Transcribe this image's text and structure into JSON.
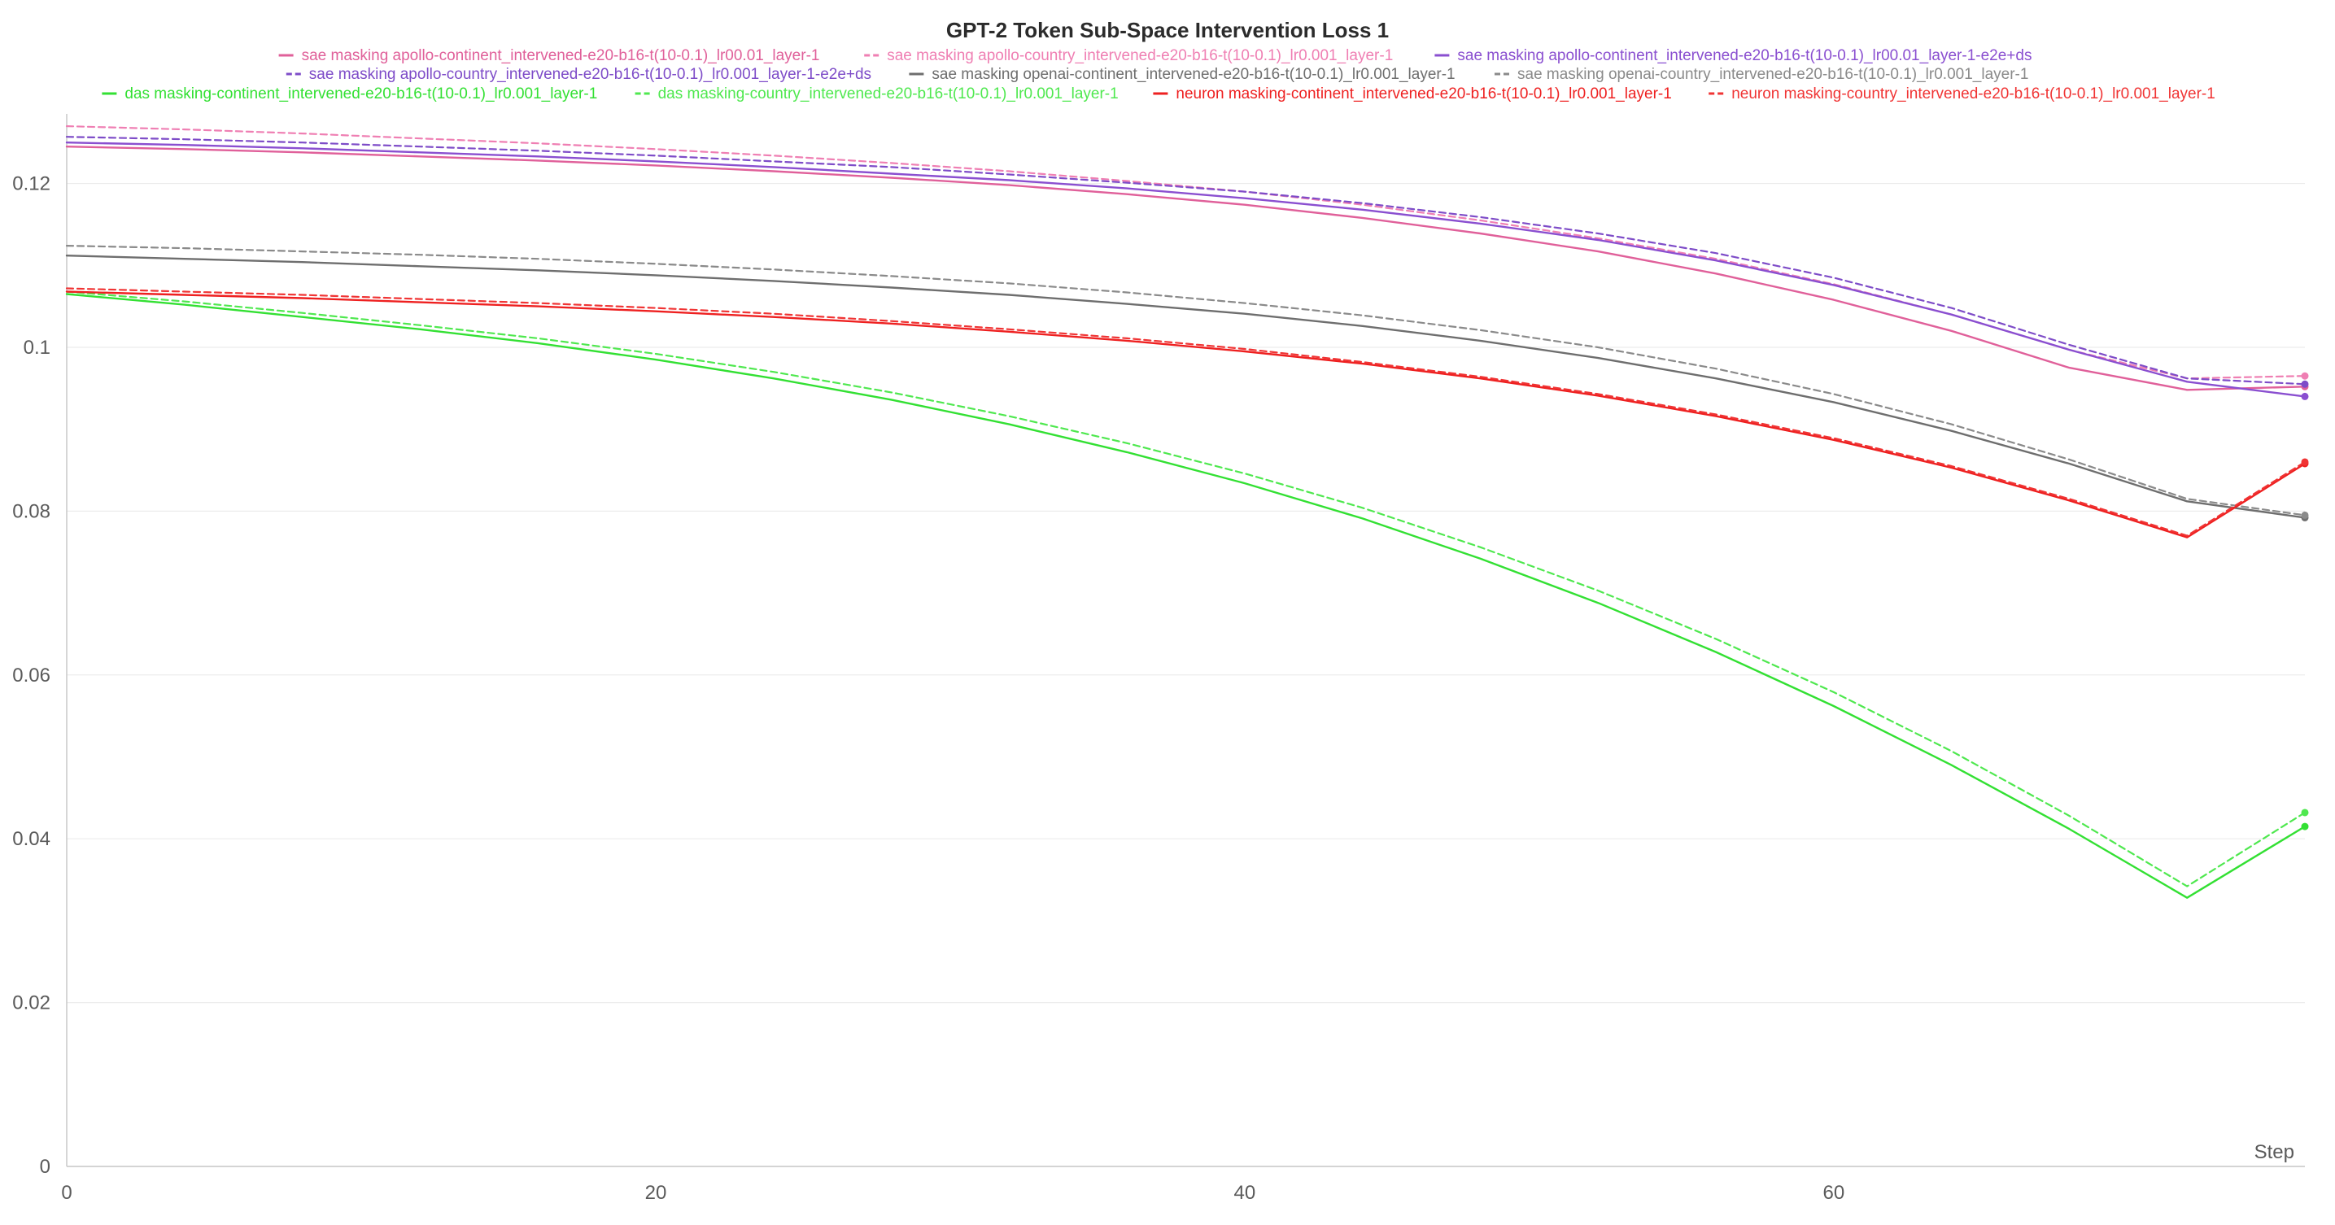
{
  "chart_data": {
    "type": "line",
    "title": "GPT-2 Token Sub-Space Intervention Loss 1",
    "xlabel": "Step",
    "ylabel": "",
    "xlim": [
      0,
      76
    ],
    "ylim": [
      0,
      0.128
    ],
    "xticks": [
      0,
      20,
      40,
      60
    ],
    "xtick_labels": [
      "0",
      "20",
      "40",
      "60"
    ],
    "yticks": [
      0,
      0.02,
      0.04,
      0.06,
      0.08,
      0.1,
      0.12
    ],
    "ytick_labels": [
      "0",
      "0.02",
      "0.04",
      "0.06",
      "0.08",
      "0.1",
      "0.12"
    ],
    "grid": true,
    "legend_position": "top",
    "x": [
      0,
      4,
      8,
      12,
      16,
      20,
      24,
      28,
      32,
      36,
      40,
      44,
      48,
      52,
      56,
      60,
      64,
      68,
      72,
      76
    ],
    "series": [
      {
        "name": "sae masking apollo-continent_intervened-e20-b16-t(10-0.1)_lr00.01_layer-1",
        "color": "#e0609a",
        "dash": "solid",
        "values": [
          0.1245,
          0.1242,
          0.1238,
          0.1233,
          0.1228,
          0.1222,
          0.1215,
          0.1207,
          0.1198,
          0.1187,
          0.1174,
          0.1158,
          0.1139,
          0.1117,
          0.109,
          0.1058,
          0.102,
          0.0975,
          0.0948,
          0.0952
        ]
      },
      {
        "name": "sae masking apollo-country_intervened-e20-b16-t(10-0.1)_lr0.001_layer-1",
        "color": "#ef7fb3",
        "dash": "dashed",
        "values": [
          0.127,
          0.1266,
          0.1261,
          0.1255,
          0.1249,
          0.1242,
          0.1234,
          0.1225,
          0.1215,
          0.1203,
          0.119,
          0.1174,
          0.1155,
          0.1133,
          0.1108,
          0.1077,
          0.104,
          0.0997,
          0.0962,
          0.0965
        ]
      },
      {
        "name": "sae masking apollo-continent_intervened-e20-b16-t(10-0.1)_lr00.01_layer-1-e2e+ds",
        "color": "#8a4fd0",
        "dash": "solid",
        "values": [
          0.125,
          0.1247,
          0.1243,
          0.1238,
          0.1233,
          0.1227,
          0.122,
          0.1212,
          0.1204,
          0.1194,
          0.1182,
          0.1168,
          0.1151,
          0.1131,
          0.1106,
          0.1076,
          0.104,
          0.0997,
          0.0958,
          0.094
        ]
      },
      {
        "name": "sae masking apollo-country_intervened-e20-b16-t(10-0.1)_lr0.001_layer-1-e2e+ds",
        "color": "#7e4cc8",
        "dash": "dashed",
        "values": [
          0.1257,
          0.1254,
          0.125,
          0.1245,
          0.124,
          0.1234,
          0.1227,
          0.122,
          0.1211,
          0.1201,
          0.119,
          0.1176,
          0.1159,
          0.1139,
          0.1115,
          0.1085,
          0.1048,
          0.1003,
          0.0962,
          0.0955
        ]
      },
      {
        "name": "sae masking openai-continent_intervened-e20-b16-t(10-0.1)_lr0.001_layer-1",
        "color": "#6e6e6e",
        "dash": "solid",
        "values": [
          0.1112,
          0.1108,
          0.1104,
          0.1099,
          0.1094,
          0.1088,
          0.1081,
          0.1073,
          0.1064,
          0.1053,
          0.1041,
          0.1026,
          0.1008,
          0.0987,
          0.0962,
          0.0933,
          0.0898,
          0.0858,
          0.0812,
          0.0792
        ]
      },
      {
        "name": "sae masking openai-country_intervened-e20-b16-t(10-0.1)_lr0.001_layer-1",
        "color": "#8a8a8a",
        "dash": "dashed",
        "values": [
          0.1124,
          0.1121,
          0.1117,
          0.1113,
          0.1108,
          0.1102,
          0.1095,
          0.1087,
          0.1078,
          0.1067,
          0.1054,
          0.1039,
          0.1021,
          0.1,
          0.0974,
          0.0943,
          0.0906,
          0.0863,
          0.0815,
          0.0795
        ]
      },
      {
        "name": "das masking-continent_intervened-e20-b16-t(10-0.1)_lr0.001_layer-1",
        "color": "#33e033",
        "dash": "solid",
        "values": [
          0.1065,
          0.1052,
          0.1037,
          0.1022,
          0.1005,
          0.0985,
          0.0962,
          0.0936,
          0.0906,
          0.0872,
          0.0834,
          0.0791,
          0.0742,
          0.0688,
          0.0628,
          0.0562,
          0.049,
          0.0412,
          0.0328,
          0.0415
        ]
      },
      {
        "name": "das masking-country_intervened-e20-b16-t(10-0.1)_lr0.001_layer-1",
        "color": "#4fe84f",
        "dash": "dashed",
        "values": [
          0.1068,
          0.1056,
          0.1042,
          0.1027,
          0.1011,
          0.0992,
          0.097,
          0.0945,
          0.0916,
          0.0883,
          0.0846,
          0.0804,
          0.0756,
          0.0703,
          0.0644,
          0.0579,
          0.0507,
          0.0428,
          0.0342,
          0.0432
        ]
      },
      {
        "name": "neuron masking-continent_intervened-e20-b16-t(10-0.1)_lr0.001_layer-1",
        "color": "#ee2020",
        "dash": "solid",
        "values": [
          0.1068,
          0.1064,
          0.106,
          0.1055,
          0.105,
          0.1044,
          0.1037,
          0.1029,
          0.1019,
          0.1008,
          0.0995,
          0.098,
          0.0962,
          0.0941,
          0.0916,
          0.0887,
          0.0853,
          0.0813,
          0.0768,
          0.0858
        ]
      },
      {
        "name": "neuron masking-country_intervened-e20-b16-t(10-0.1)_lr0.001_layer-1",
        "color": "#f03434",
        "dash": "dashed",
        "values": [
          0.1072,
          0.1068,
          0.1064,
          0.1059,
          0.1054,
          0.1048,
          0.1041,
          0.1032,
          0.1022,
          0.1011,
          0.0998,
          0.0982,
          0.0964,
          0.0943,
          0.0918,
          0.0889,
          0.0855,
          0.0815,
          0.077,
          0.086
        ]
      }
    ]
  }
}
